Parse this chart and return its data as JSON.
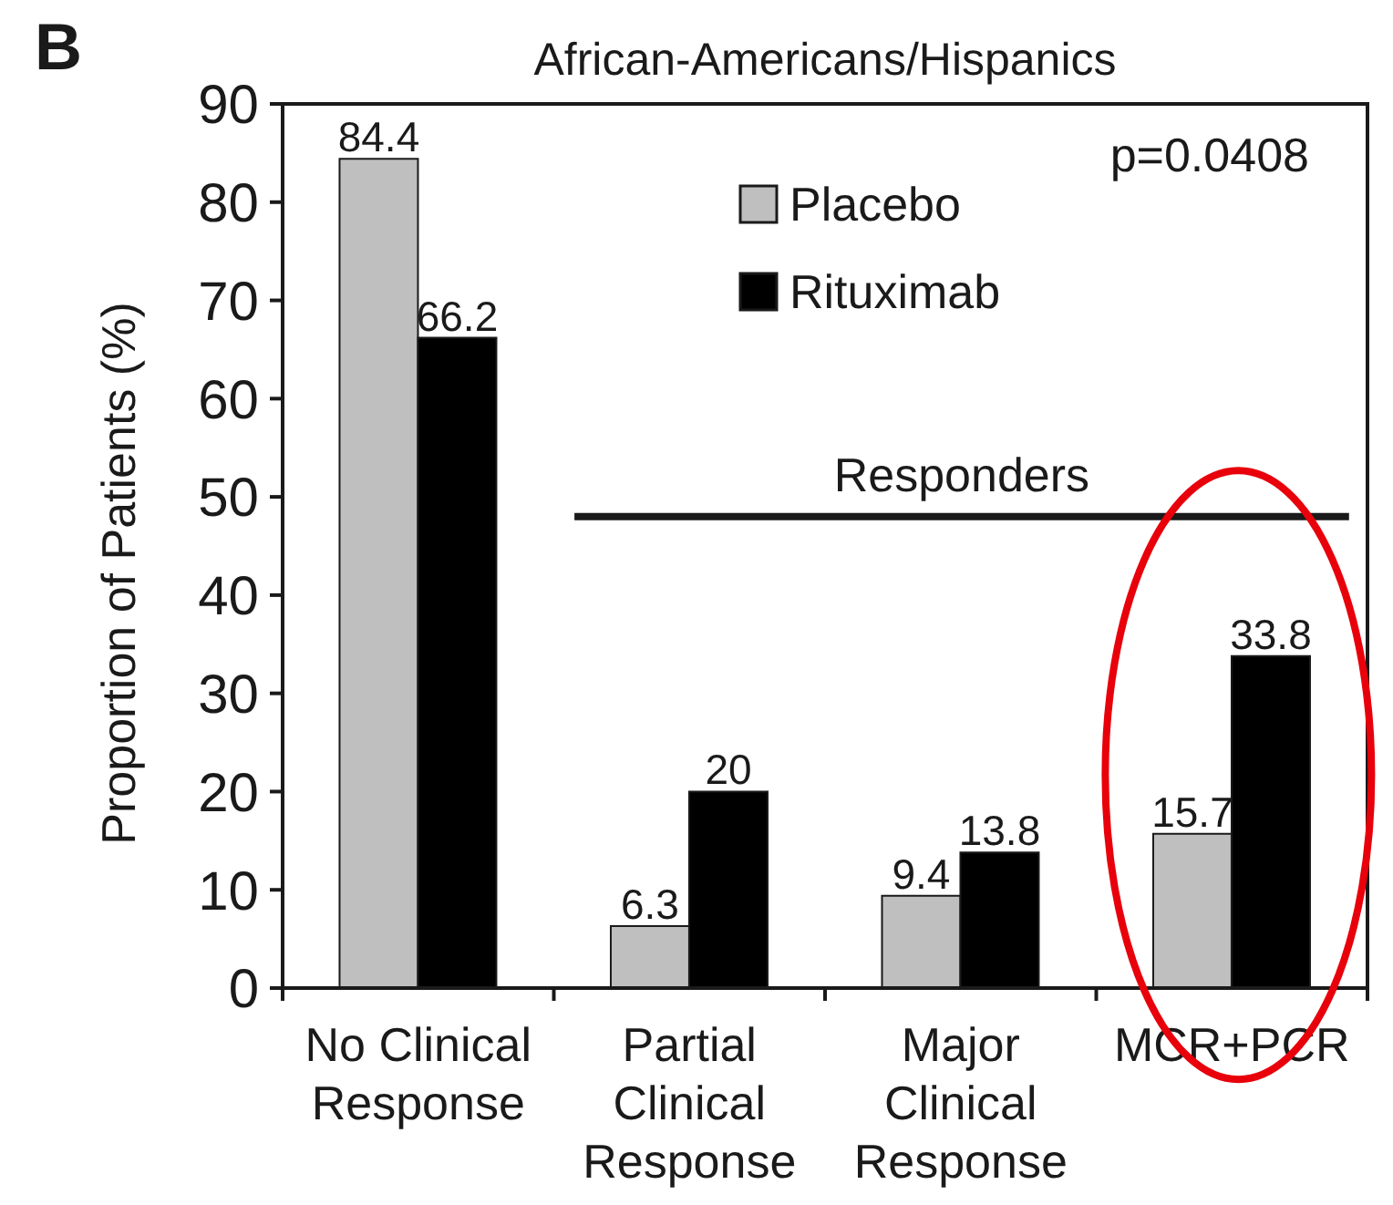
{
  "chart_data": {
    "type": "bar",
    "title": "African-Americans/Hispanics",
    "ylabel": "Proportion of Patients (%)",
    "categories": [
      "No Clinical Response",
      "Partial Clinical Response",
      "Major Clinical Response",
      "MCR+PCR"
    ],
    "series": [
      {
        "name": "Placebo",
        "color": "#bfbfbf",
        "values": [
          84.4,
          6.3,
          9.4,
          15.7
        ]
      },
      {
        "name": "Rituximab",
        "color": "#000000",
        "values": [
          66.2,
          20,
          13.8,
          33.8
        ]
      }
    ],
    "ylim": [
      0,
      90
    ],
    "yticks": [
      0,
      10,
      20,
      30,
      40,
      50,
      60,
      70,
      80,
      90
    ],
    "data_labels": true,
    "legend": "top",
    "ref_lines": [
      {
        "axis": "y",
        "value": 48,
        "label": "Responders"
      }
    ],
    "annotations": [
      "B",
      "p=0.0408"
    ]
  }
}
